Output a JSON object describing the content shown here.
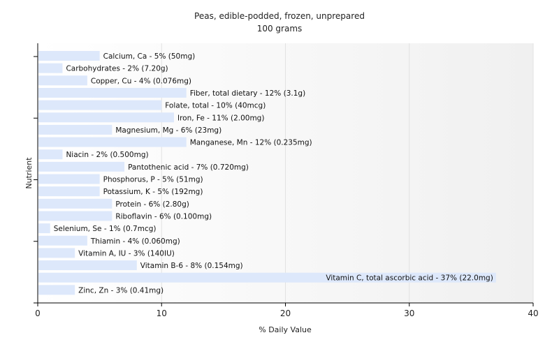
{
  "chart_data": {
    "type": "bar",
    "orientation": "horizontal",
    "title": "Peas, edible-podded, frozen, unprepared",
    "subtitle": "100 grams",
    "xlabel": "% Daily Value",
    "ylabel": "Nutrient",
    "xlim": [
      0,
      40
    ],
    "xticks": [
      0,
      10,
      20,
      30,
      40
    ],
    "grid": true,
    "bar_color": "#dde8fb",
    "categories": [
      "Calcium, Ca",
      "Carbohydrates",
      "Copper, Cu",
      "Fiber, total dietary",
      "Folate, total",
      "Iron, Fe",
      "Magnesium, Mg",
      "Manganese, Mn",
      "Niacin",
      "Pantothenic acid",
      "Phosphorus, P",
      "Potassium, K",
      "Protein",
      "Riboflavin",
      "Selenium, Se",
      "Thiamin",
      "Vitamin A, IU",
      "Vitamin B-6",
      "Vitamin C, total ascorbic acid",
      "Zinc, Zn"
    ],
    "values": [
      5,
      2,
      4,
      12,
      10,
      11,
      6,
      12,
      2,
      7,
      5,
      5,
      6,
      6,
      1,
      4,
      3,
      8,
      37,
      3
    ],
    "data_labels": [
      "Calcium, Ca - 5% (50mg)",
      "Carbohydrates - 2% (7.20g)",
      "Copper, Cu - 4% (0.076mg)",
      "Fiber, total dietary - 12% (3.1g)",
      "Folate, total - 10% (40mcg)",
      "Iron, Fe - 11% (2.00mg)",
      "Magnesium, Mg - 6% (23mg)",
      "Manganese, Mn - 12% (0.235mg)",
      "Niacin - 2% (0.500mg)",
      "Pantothenic acid - 7% (0.720mg)",
      "Phosphorus, P - 5% (51mg)",
      "Potassium, K - 5% (192mg)",
      "Protein - 6% (2.80g)",
      "Riboflavin - 6% (0.100mg)",
      "Selenium, Se - 1% (0.7mcg)",
      "Thiamin - 4% (0.060mg)",
      "Vitamin A, IU - 3% (140IU)",
      "Vitamin B-6 - 8% (0.154mg)",
      "Vitamin C, total ascorbic acid - 37% (22.0mg)",
      "Zinc, Zn - 3% (0.41mg)"
    ]
  }
}
